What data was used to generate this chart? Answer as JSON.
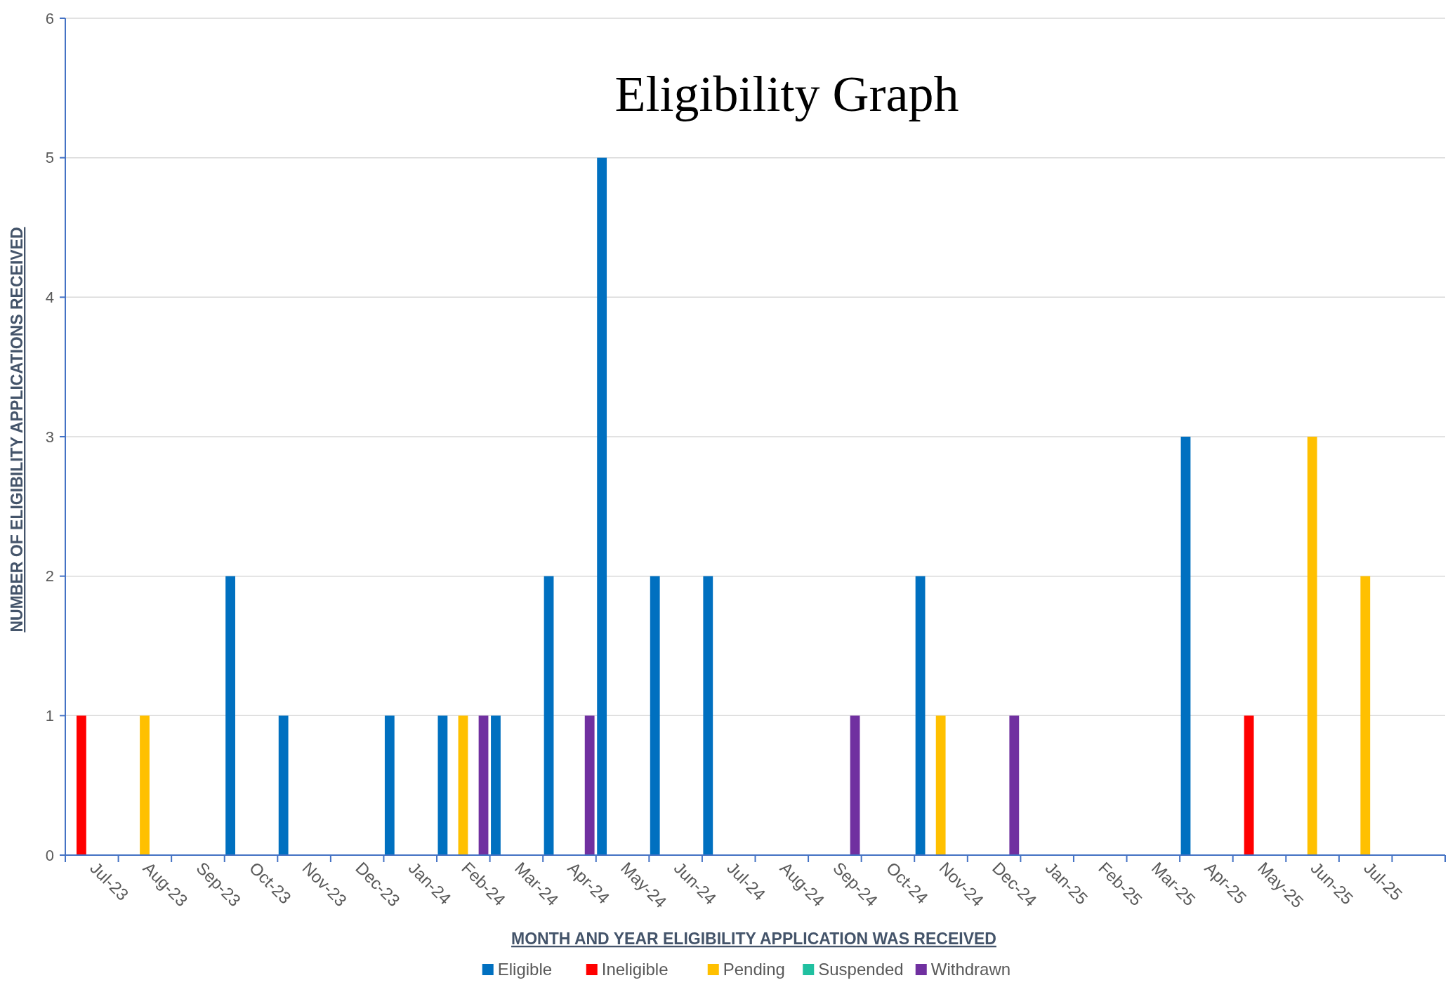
{
  "chart_data": {
    "type": "bar",
    "title": "Eligibility Graph",
    "xlabel": "MONTH AND YEAR ELIGIBILITY APPLICATION WAS RECEIVED",
    "ylabel": "NUMBER OF ELIGIBILITY APPLICATIONS RECEIVED",
    "categories": [
      "Jul-23",
      "Aug-23",
      "Sep-23",
      "Oct-23",
      "Nov-23",
      "Dec-23",
      "Jan-24",
      "Feb-24",
      "Mar-24",
      "Apr-24",
      "May-24",
      "Jun-24",
      "Jul-24",
      "Aug-24",
      "Sep-24",
      "Oct-24",
      "Nov-24",
      "Dec-24",
      "Jan-25",
      "Feb-25",
      "Mar-25",
      "Apr-25",
      "May-25",
      "Jun-25",
      "Jul-25",
      null
    ],
    "series": [
      {
        "name": "Eligible",
        "color": "#0070c0",
        "values": [
          0,
          0,
          0,
          2,
          1,
          0,
          1,
          1,
          1,
          2,
          5,
          2,
          2,
          0,
          0,
          0,
          2,
          0,
          0,
          0,
          0,
          3,
          0,
          0,
          0,
          0
        ]
      },
      {
        "name": "Ineligible",
        "color": "#ff0000",
        "values": [
          1,
          0,
          0,
          0,
          0,
          0,
          0,
          0,
          0,
          0,
          0,
          0,
          0,
          0,
          0,
          0,
          0,
          0,
          0,
          0,
          0,
          0,
          1,
          0,
          0,
          0
        ]
      },
      {
        "name": "Pending",
        "color": "#ffc000",
        "values": [
          0,
          1,
          0,
          0,
          0,
          0,
          0,
          1,
          0,
          0,
          0,
          0,
          0,
          0,
          0,
          0,
          1,
          0,
          0,
          0,
          0,
          0,
          0,
          3,
          2,
          0
        ]
      },
      {
        "name": "Suspended",
        "color": "#20c0a0",
        "values": [
          0,
          0,
          0,
          0,
          0,
          0,
          0,
          0,
          0,
          0,
          0,
          0,
          0,
          0,
          0,
          0,
          0,
          0,
          0,
          0,
          0,
          0,
          0,
          0,
          0,
          0
        ]
      },
      {
        "name": "Withdrawn",
        "color": "#7030a0",
        "values": [
          0,
          0,
          0,
          0,
          0,
          0,
          0,
          1,
          0,
          1,
          0,
          0,
          0,
          0,
          1,
          0,
          0,
          1,
          0,
          0,
          0,
          0,
          0,
          0,
          0,
          0
        ]
      }
    ],
    "ylim": [
      0,
      6
    ],
    "yticks": [
      0,
      1,
      2,
      3,
      4,
      5,
      6
    ],
    "grid": "y",
    "legend": "bottom"
  }
}
